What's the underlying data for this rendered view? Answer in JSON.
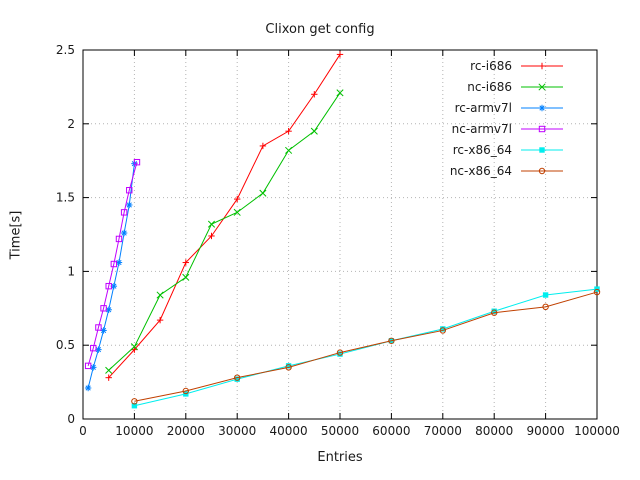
{
  "chart_data": {
    "type": "line",
    "title": "Clixon get config",
    "xlabel": "Entries",
    "ylabel": "Time[s]",
    "xlim": [
      0,
      100000
    ],
    "ylim": [
      0,
      2.5
    ],
    "xticks": [
      0,
      10000,
      20000,
      30000,
      40000,
      50000,
      60000,
      70000,
      80000,
      90000,
      100000
    ],
    "xtick_labels": [
      "0",
      "10000",
      "20000",
      "30000",
      "40000",
      "50000",
      "60000",
      "70000",
      "80000",
      "90000",
      "100000"
    ],
    "yticks": [
      0,
      0.5,
      1,
      1.5,
      2,
      2.5
    ],
    "ytick_labels": [
      "0",
      "0.5",
      "1",
      "1.5",
      "2",
      "2.5"
    ],
    "grid": true,
    "legend_position": "top-right-inside",
    "series": [
      {
        "name": "rc-i686",
        "color": "#ff0000",
        "marker": "plus",
        "points": [
          [
            5000,
            0.28
          ],
          [
            10000,
            0.47
          ],
          [
            15000,
            0.67
          ],
          [
            20000,
            1.06
          ],
          [
            25000,
            1.24
          ],
          [
            30000,
            1.49
          ],
          [
            35000,
            1.85
          ],
          [
            40000,
            1.95
          ],
          [
            45000,
            2.2
          ],
          [
            50000,
            2.47
          ]
        ]
      },
      {
        "name": "nc-i686",
        "color": "#00c000",
        "marker": "cross",
        "points": [
          [
            5000,
            0.33
          ],
          [
            10000,
            0.49
          ],
          [
            15000,
            0.84
          ],
          [
            20000,
            0.96
          ],
          [
            25000,
            1.32
          ],
          [
            30000,
            1.4
          ],
          [
            35000,
            1.53
          ],
          [
            40000,
            1.82
          ],
          [
            45000,
            1.95
          ],
          [
            50000,
            2.21
          ]
        ]
      },
      {
        "name": "rc-armv7l",
        "color": "#0080ff",
        "marker": "asterisk",
        "points": [
          [
            1000,
            0.21
          ],
          [
            2000,
            0.35
          ],
          [
            3000,
            0.47
          ],
          [
            4000,
            0.6
          ],
          [
            5000,
            0.74
          ],
          [
            6000,
            0.9
          ],
          [
            7000,
            1.06
          ],
          [
            8000,
            1.26
          ],
          [
            9000,
            1.45
          ],
          [
            10000,
            1.73
          ]
        ]
      },
      {
        "name": "nc-armv7l",
        "color": "#c000ff",
        "marker": "square-open",
        "points": [
          [
            1000,
            0.36
          ],
          [
            2000,
            0.48
          ],
          [
            3000,
            0.62
          ],
          [
            4000,
            0.75
          ],
          [
            5000,
            0.9
          ],
          [
            6000,
            1.05
          ],
          [
            7000,
            1.22
          ],
          [
            8000,
            1.4
          ],
          [
            9000,
            1.55
          ],
          [
            10500,
            1.74
          ]
        ]
      },
      {
        "name": "rc-x86_64",
        "color": "#00eeee",
        "marker": "square-filled",
        "points": [
          [
            10000,
            0.09
          ],
          [
            20000,
            0.17
          ],
          [
            30000,
            0.27
          ],
          [
            40000,
            0.36
          ],
          [
            50000,
            0.44
          ],
          [
            60000,
            0.53
          ],
          [
            70000,
            0.61
          ],
          [
            80000,
            0.73
          ],
          [
            90000,
            0.84
          ],
          [
            100000,
            0.88
          ]
        ]
      },
      {
        "name": "nc-x86_64",
        "color": "#c04000",
        "marker": "circle-open",
        "points": [
          [
            10000,
            0.12
          ],
          [
            20000,
            0.19
          ],
          [
            30000,
            0.28
          ],
          [
            40000,
            0.35
          ],
          [
            50000,
            0.45
          ],
          [
            60000,
            0.53
          ],
          [
            70000,
            0.6
          ],
          [
            80000,
            0.72
          ],
          [
            90000,
            0.76
          ],
          [
            100000,
            0.86
          ]
        ]
      }
    ]
  }
}
